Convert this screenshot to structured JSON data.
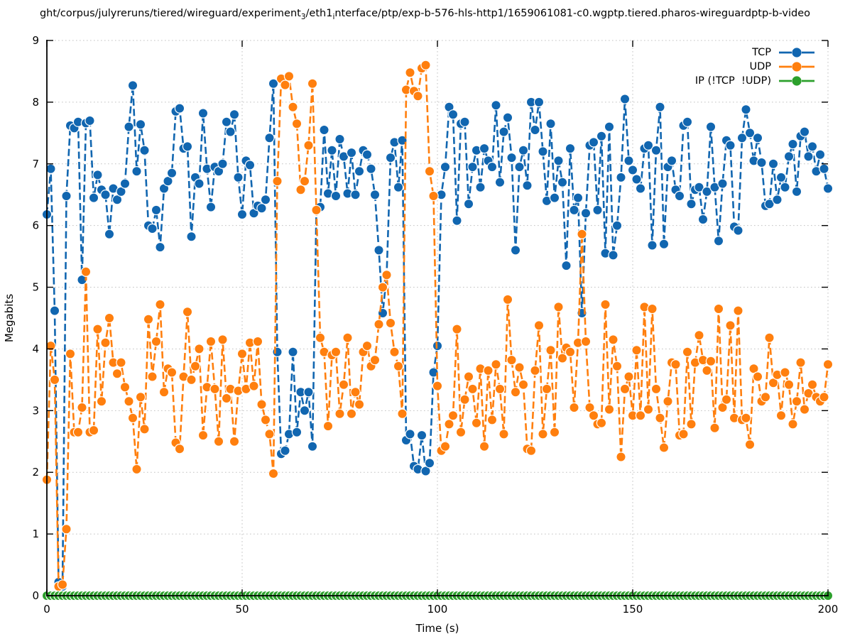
{
  "title": {
    "part1": "ght/corpus/julyreruns/tiered/wireguard/experiment",
    "sub1": "3",
    "part2": "/eth1",
    "sub2": "i",
    "part3": "nterface/ptp/exp-b-576-hls-http1/1659061081-c0.wgptp.tiered.pharos-wireguardptp-b-video"
  },
  "chart_data": {
    "type": "line",
    "title": "ght/corpus/julyreruns/tiered/wireguard/experiment3/eth1interface/ptp/exp-b-576-hls-http1/1659061081-c0.wgptp.tiered.pharos-wireguardptp-b-video",
    "xlabel": "Time (s)",
    "ylabel": "Megabits",
    "xlim": [
      0,
      200
    ],
    "ylim": [
      0,
      9
    ],
    "xticks": [
      0,
      50,
      100,
      150,
      200
    ],
    "yticks": [
      0,
      1,
      2,
      3,
      4,
      5,
      6,
      7,
      8,
      9
    ],
    "grid": true,
    "grid_style": "dotted",
    "legend_position": "top-right-inside",
    "marker": "filled-circle",
    "line_style": "dashed",
    "x_start": 0,
    "x_step": 1,
    "series": [
      {
        "id": "tcp",
        "name": "TCP",
        "color": "#1166b0",
        "values": [
          6.18,
          6.92,
          4.62,
          0.22,
          0.15,
          6.48,
          7.62,
          7.58,
          7.68,
          5.12,
          7.66,
          7.7,
          6.45,
          6.82,
          6.58,
          6.5,
          5.86,
          6.6,
          6.42,
          6.55,
          6.68,
          7.6,
          8.27,
          6.88,
          7.64,
          7.22,
          6.0,
          5.95,
          6.25,
          5.65,
          6.6,
          6.72,
          6.85,
          7.85,
          7.9,
          7.25,
          7.28,
          5.82,
          6.78,
          6.68,
          7.82,
          6.92,
          6.3,
          6.95,
          6.88,
          7.0,
          7.68,
          7.52,
          7.8,
          6.78,
          6.18,
          7.05,
          6.98,
          6.2,
          6.32,
          6.28,
          6.42,
          7.42,
          8.3,
          3.95,
          2.3,
          2.35,
          2.62,
          3.95,
          2.65,
          3.3,
          3.0,
          3.3,
          2.42,
          6.25,
          6.3,
          7.55,
          6.52,
          7.22,
          6.48,
          7.4,
          7.12,
          6.52,
          7.18,
          6.5,
          6.88,
          7.22,
          7.15,
          6.92,
          6.5,
          5.6,
          4.58,
          5.2,
          7.1,
          7.35,
          6.62,
          7.38,
          2.52,
          2.62,
          2.1,
          2.05,
          2.6,
          2.02,
          2.15,
          3.62,
          4.05,
          6.5,
          6.95,
          7.92,
          7.8,
          6.08,
          7.65,
          7.68,
          6.35,
          6.95,
          7.22,
          6.62,
          7.25,
          7.05,
          6.95,
          7.95,
          6.7,
          7.52,
          7.75,
          7.1,
          5.6,
          6.95,
          7.22,
          6.65,
          8.0,
          7.55,
          8.0,
          7.2,
          6.4,
          7.65,
          6.45,
          7.05,
          6.7,
          5.35,
          7.25,
          6.25,
          6.45,
          4.58,
          6.2,
          7.3,
          7.35,
          6.25,
          7.45,
          5.55,
          7.6,
          5.52,
          6.0,
          6.78,
          8.05,
          7.05,
          6.9,
          6.75,
          6.6,
          7.25,
          7.3,
          5.68,
          7.22,
          7.92,
          5.7,
          6.95,
          7.05,
          6.58,
          6.48,
          7.62,
          7.68,
          6.35,
          6.58,
          6.62,
          6.1,
          6.55,
          7.6,
          6.62,
          5.75,
          6.68,
          7.38,
          7.3,
          5.98,
          5.92,
          7.42,
          7.88,
          7.5,
          7.05,
          7.42,
          7.02,
          6.32,
          6.35,
          7.0,
          6.42,
          6.78,
          6.62,
          7.12,
          7.32,
          6.55,
          7.45,
          7.52,
          7.12,
          7.28,
          6.88,
          7.15,
          6.92,
          6.6
        ]
      },
      {
        "id": "udp",
        "name": "UDP",
        "color": "#ff7f0e",
        "values": [
          1.88,
          4.05,
          3.5,
          0.15,
          0.18,
          1.08,
          3.92,
          2.65,
          2.65,
          3.05,
          5.25,
          2.65,
          2.68,
          4.32,
          3.15,
          4.1,
          4.5,
          3.78,
          3.6,
          3.78,
          3.38,
          3.15,
          2.88,
          2.05,
          3.22,
          2.7,
          4.48,
          3.55,
          4.12,
          4.72,
          3.3,
          3.68,
          3.62,
          2.48,
          2.38,
          3.55,
          4.6,
          3.5,
          3.72,
          4.0,
          2.6,
          3.38,
          4.12,
          3.35,
          2.5,
          4.15,
          3.2,
          3.35,
          2.5,
          3.32,
          3.92,
          3.35,
          4.1,
          3.4,
          4.12,
          3.1,
          2.85,
          2.62,
          1.98,
          6.72,
          8.38,
          8.28,
          8.42,
          7.92,
          7.65,
          6.58,
          6.72,
          7.3,
          8.3,
          6.25,
          4.18,
          3.95,
          2.75,
          3.9,
          3.95,
          2.95,
          3.42,
          4.18,
          2.95,
          3.3,
          3.1,
          3.95,
          4.05,
          3.72,
          3.82,
          4.4,
          5.0,
          5.2,
          4.42,
          3.95,
          3.72,
          2.95,
          8.2,
          8.48,
          8.18,
          8.1,
          8.55,
          8.6,
          6.88,
          6.48,
          3.4,
          2.35,
          2.42,
          2.78,
          2.92,
          4.32,
          2.65,
          3.18,
          3.55,
          3.35,
          2.8,
          3.68,
          2.42,
          3.65,
          2.85,
          3.75,
          3.35,
          2.62,
          4.8,
          3.82,
          3.3,
          3.7,
          3.42,
          2.38,
          2.35,
          3.65,
          4.38,
          2.62,
          3.35,
          3.98,
          2.65,
          4.68,
          3.85,
          4.02,
          3.95,
          3.05,
          4.1,
          5.86,
          4.12,
          3.05,
          2.92,
          2.78,
          2.8,
          4.72,
          3.02,
          4.15,
          3.72,
          2.25,
          3.35,
          3.55,
          2.92,
          3.98,
          2.92,
          4.68,
          3.02,
          4.65,
          3.35,
          2.88,
          2.4,
          3.15,
          3.78,
          3.75,
          2.6,
          2.62,
          3.95,
          2.78,
          3.78,
          4.22,
          3.82,
          3.65,
          3.8,
          2.72,
          4.65,
          3.05,
          3.18,
          4.38,
          2.88,
          4.62,
          2.85,
          2.88,
          2.45,
          3.68,
          3.55,
          3.15,
          3.22,
          4.18,
          3.45,
          3.58,
          2.92,
          3.62,
          3.42,
          2.78,
          3.15,
          3.78,
          3.02,
          3.28,
          3.42,
          3.22,
          3.15,
          3.22,
          3.75
        ]
      },
      {
        "id": "ip-other",
        "name": "IP (!TCP  !UDP)",
        "color": "#2ca02c",
        "constant_value": 0
      }
    ]
  }
}
